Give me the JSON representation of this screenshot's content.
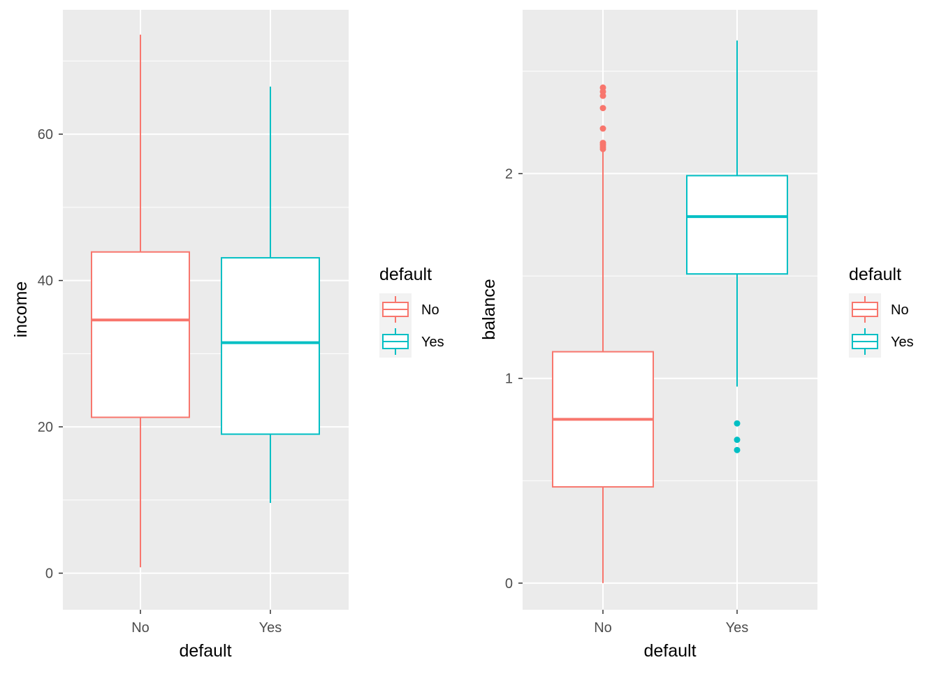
{
  "chart_data": [
    {
      "type": "boxplot",
      "xlabel": "default",
      "ylabel": "income",
      "categories": [
        "No",
        "Yes"
      ],
      "ylim": [
        -5,
        77
      ],
      "yticks": [
        0,
        20,
        40,
        60
      ],
      "ytick_labels": [
        "0",
        "20",
        "40",
        "60"
      ],
      "boxes": [
        {
          "category": "No",
          "lower_whisker": 0.8,
          "q1": 21.3,
          "median": 34.6,
          "q3": 43.9,
          "upper_whisker": 73.6,
          "outliers": []
        },
        {
          "category": "Yes",
          "lower_whisker": 9.6,
          "q1": 19.0,
          "median": 31.5,
          "q3": 43.1,
          "upper_whisker": 66.5,
          "outliers": []
        }
      ],
      "legend": {
        "title": "default",
        "entries": [
          "No",
          "Yes"
        ],
        "position": "right"
      }
    },
    {
      "type": "boxplot",
      "xlabel": "default",
      "ylabel": "balance",
      "categories": [
        "No",
        "Yes"
      ],
      "ylim": [
        -0.13,
        2.8
      ],
      "yticks": [
        0,
        1,
        2
      ],
      "ytick_labels": [
        "0",
        "1",
        "2"
      ],
      "boxes": [
        {
          "category": "No",
          "lower_whisker": 0.0,
          "q1": 0.47,
          "median": 0.8,
          "q3": 1.13,
          "upper_whisker": 2.11,
          "outliers": [
            2.12,
            2.13,
            2.14,
            2.15,
            2.22,
            2.32,
            2.38,
            2.4,
            2.42
          ]
        },
        {
          "category": "Yes",
          "lower_whisker": 0.96,
          "q1": 1.51,
          "median": 1.79,
          "q3": 1.99,
          "upper_whisker": 2.65,
          "outliers": [
            0.78,
            0.7,
            0.65
          ]
        }
      ],
      "legend": {
        "title": "default",
        "entries": [
          "No",
          "Yes"
        ],
        "position": "right"
      }
    }
  ],
  "colors": {
    "No": "#F8766D",
    "Yes": "#00BFC4",
    "panel": "#EBEBEB",
    "grid": "#FFFFFF"
  }
}
